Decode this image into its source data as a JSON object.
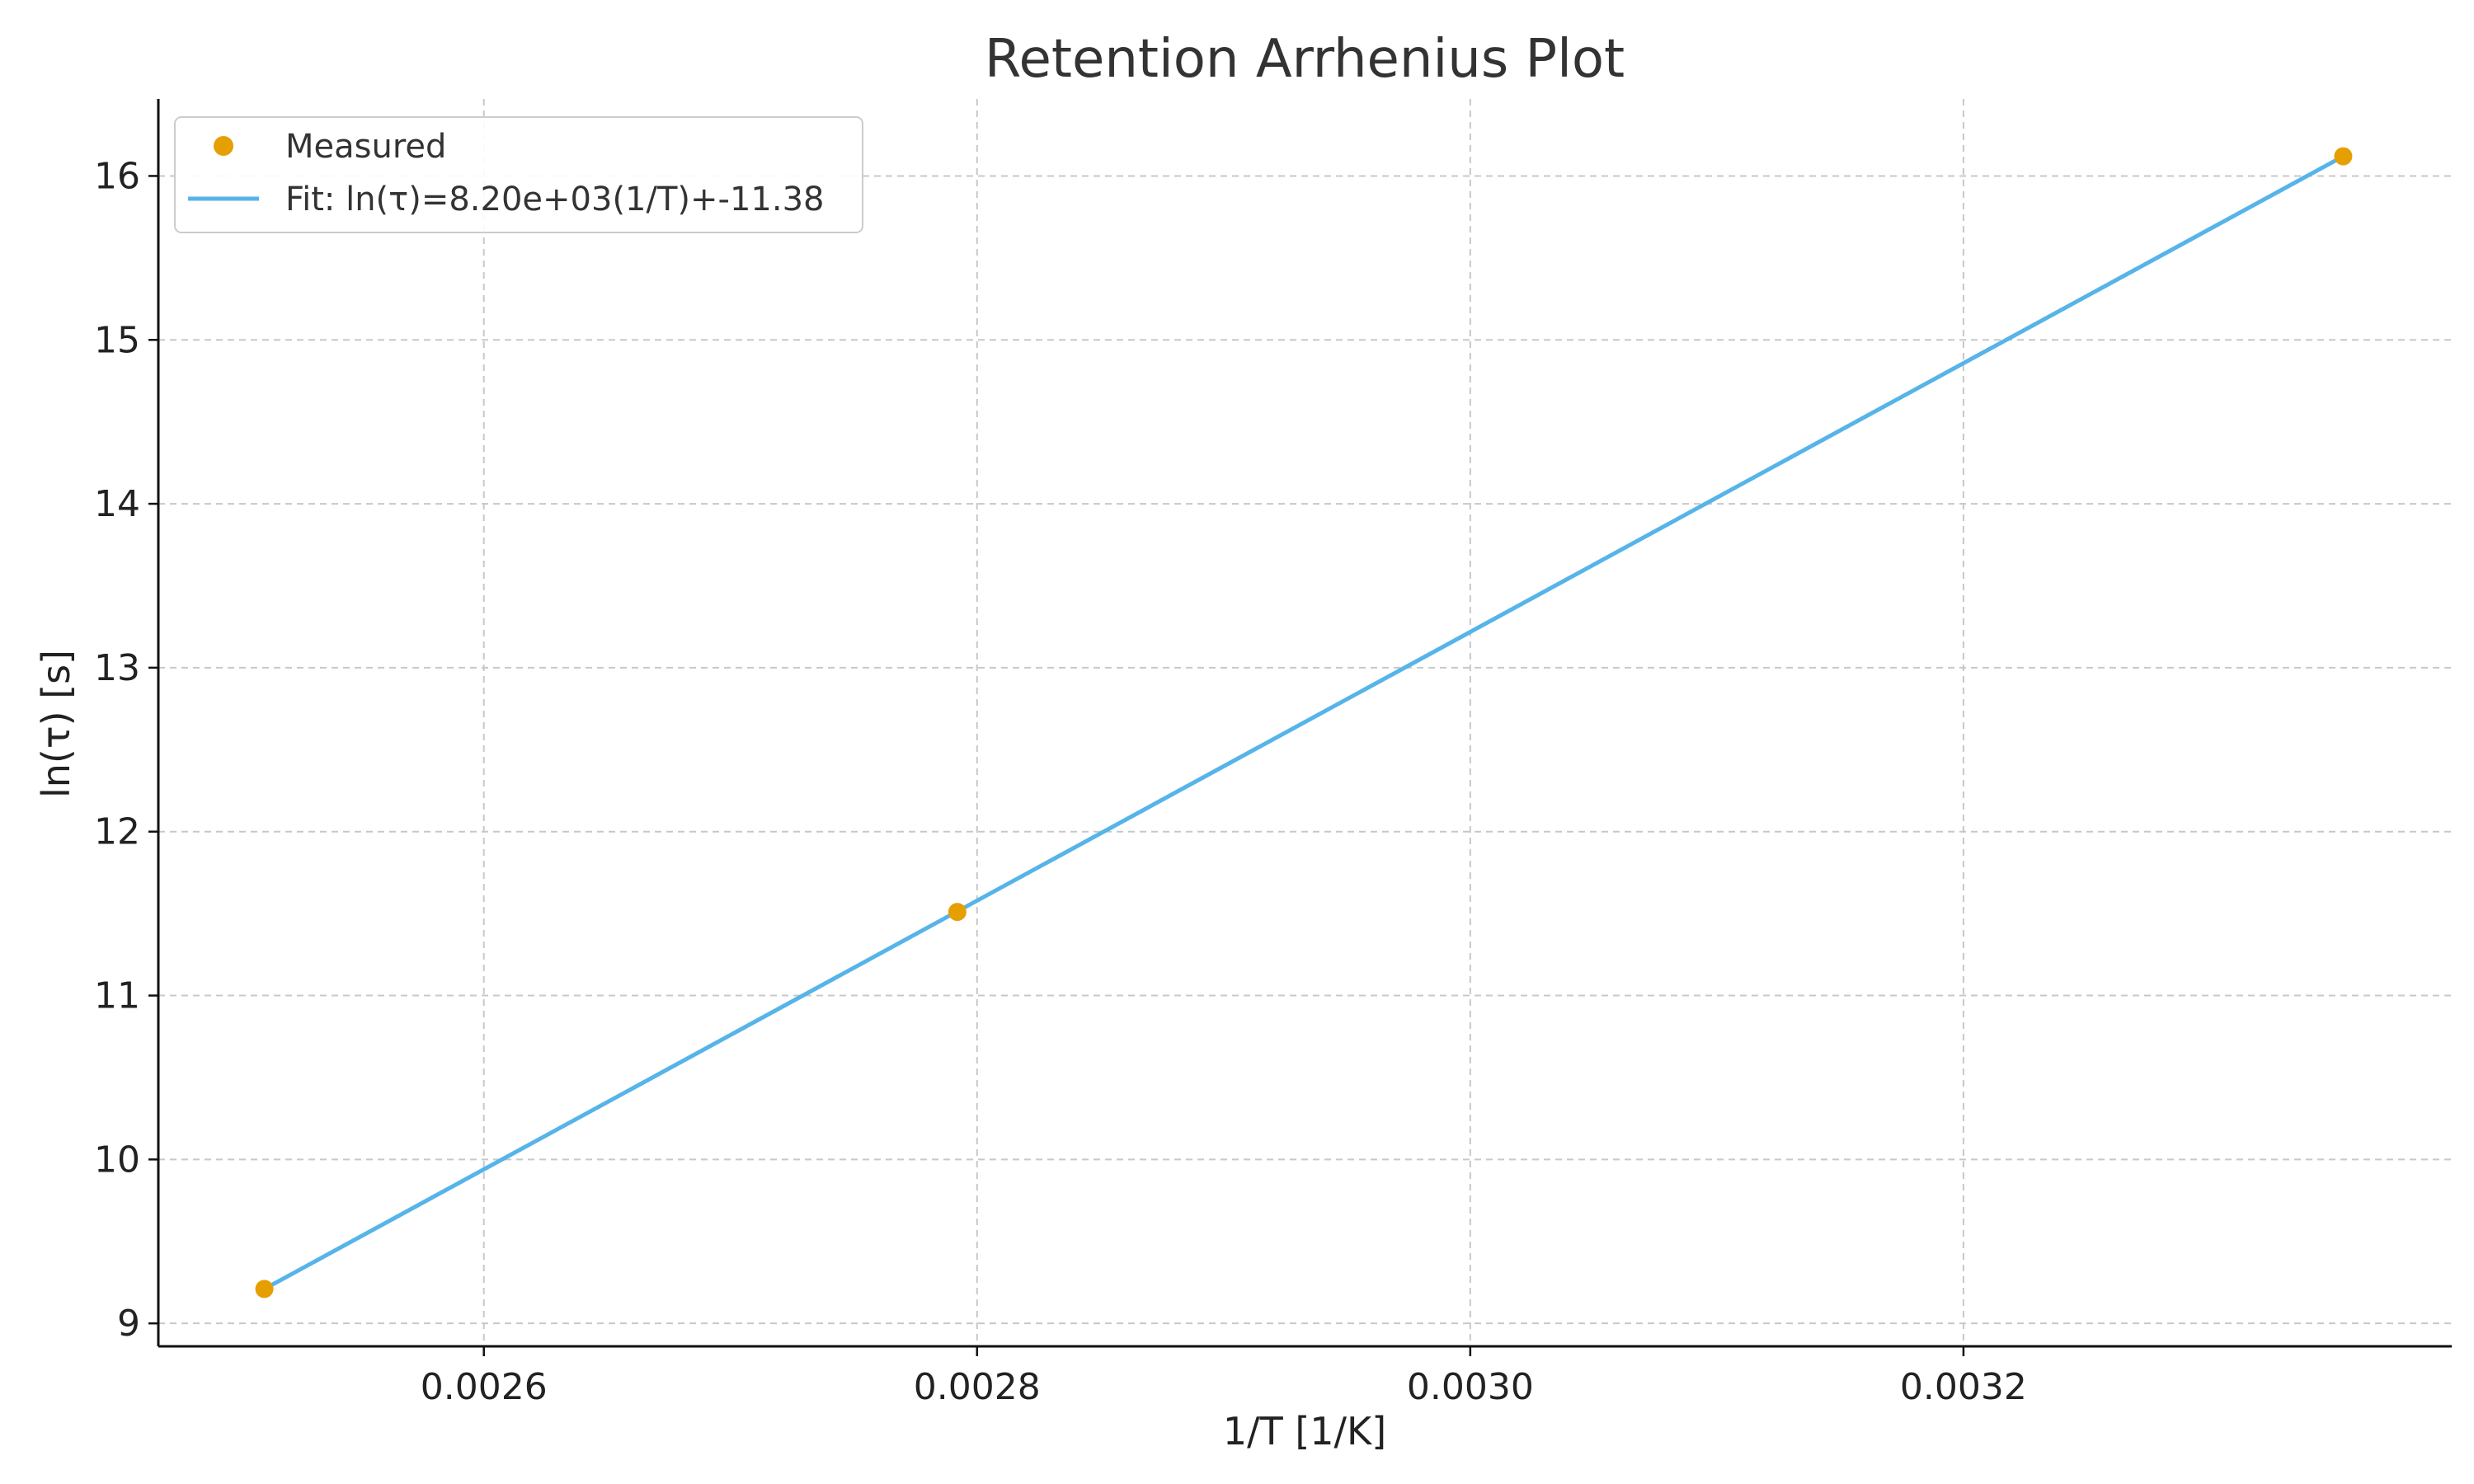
{
  "chart_data": {
    "type": "scatter",
    "title": "Retention Arrhenius Plot",
    "xlabel": "1/T [1/K]",
    "ylabel": "ln(τ) [s]",
    "xlim": [
      0.002468,
      0.003398
    ],
    "ylim": [
      8.86,
      16.47
    ],
    "xticks": [
      0.0026,
      0.0028,
      0.003,
      0.0032
    ],
    "xtick_labels": [
      "0.0026",
      "0.0028",
      "0.0030",
      "0.0032"
    ],
    "yticks": [
      9,
      10,
      11,
      12,
      13,
      14,
      15,
      16
    ],
    "ytick_labels": [
      "9",
      "10",
      "11",
      "12",
      "13",
      "14",
      "15",
      "16"
    ],
    "grid": true,
    "legend_position": "top-left",
    "series": [
      {
        "name": "Measured",
        "kind": "points",
        "color": "#E69F00",
        "x": [
          0.002511,
          0.002792,
          0.003354
        ],
        "y": [
          9.21,
          11.51,
          16.12
        ]
      },
      {
        "name": "Fit: ln(τ)=8.20e+03(1/T)+-11.38",
        "kind": "line",
        "color": "#56B4E9",
        "x": [
          0.002511,
          0.003354
        ],
        "y": [
          9.21,
          16.12
        ]
      }
    ]
  }
}
